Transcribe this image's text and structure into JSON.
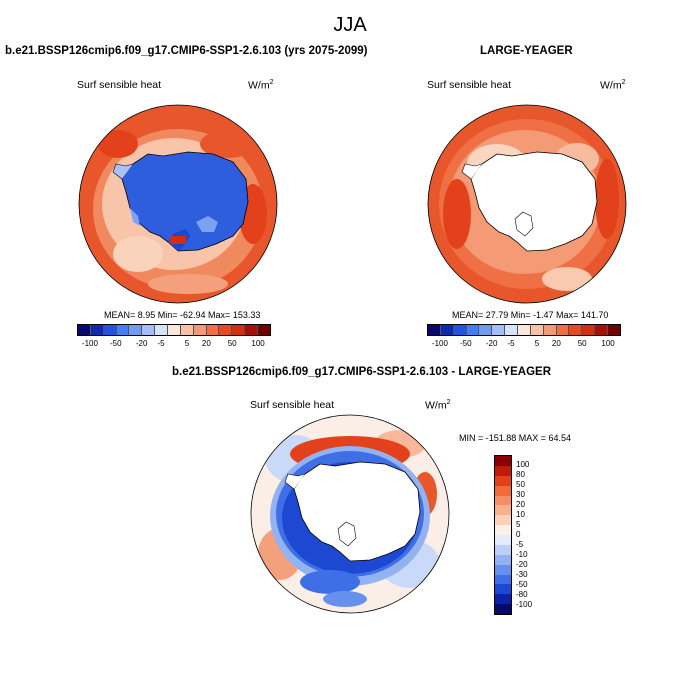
{
  "title": "JJA",
  "panels": {
    "top_left": {
      "title": "b.e21.BSSP126cmip6.f09_g17.CMIP6-SSP1-2.6.103 (yrs 2075-2099)",
      "variable": "Surf sensible heat",
      "units": "W/m",
      "units_sup": "2",
      "stats": "MEAN=   8.95  Min= -62.94  Max= 153.33"
    },
    "top_right": {
      "title": "LARGE-YEAGER",
      "variable": "Surf sensible heat",
      "units": "W/m",
      "units_sup": "2",
      "stats": "MEAN=  27.79  Min=  -1.47  Max= 141.70"
    },
    "bottom": {
      "title": "b.e21.BSSP126cmip6.f09_g17.CMIP6-SSP1-2.6.103 - LARGE-YEAGER",
      "variable": "Surf sensible heat",
      "units": "W/m",
      "units_sup": "2",
      "stats": "MIN = -151.88 MAX =  64.54"
    }
  },
  "colorbar_horizontal": {
    "tick_labels": [
      "-100",
      "-50",
      "-20",
      "-5",
      "5",
      "20",
      "50",
      "100"
    ],
    "colors": [
      "#08086e",
      "#0a2bb0",
      "#1d57dc",
      "#3f7ff0",
      "#6e9cf3",
      "#a2bff7",
      "#d5e4fb",
      "#fbe6da",
      "#f9c2a6",
      "#f59a70",
      "#ef7045",
      "#e64b20",
      "#d0300f",
      "#a21006",
      "#6e0000"
    ]
  },
  "colorbar_vertical": {
    "tick_labels": [
      "100",
      "80",
      "50",
      "30",
      "20",
      "10",
      "5",
      "0",
      "-5",
      "-10",
      "-20",
      "-30",
      "-50",
      "-80",
      "-100"
    ],
    "colors": [
      "#8a0000",
      "#c11a0a",
      "#e3411c",
      "#f06a3a",
      "#f58e62",
      "#f8b08e",
      "#fad1b9",
      "#fdf0e7",
      "#e3ecfb",
      "#bcd0f7",
      "#93b2f2",
      "#6690ed",
      "#3f6fe6",
      "#1d49d2",
      "#0a22a8",
      "#030a6a"
    ]
  },
  "map_colors": {
    "ocean_positive_strong": "#e8562a",
    "ocean_positive_mid": "#f28a5e",
    "ocean_positive_light": "#f9c6ab",
    "near_zero": "#fdf1ea",
    "negative_light": "#c9daf8",
    "negative_mid": "#6e9cf3",
    "negative_strong": "#2d5fe0",
    "land_negative": "#2d5bdd",
    "land_missing": "#ffffff"
  }
}
